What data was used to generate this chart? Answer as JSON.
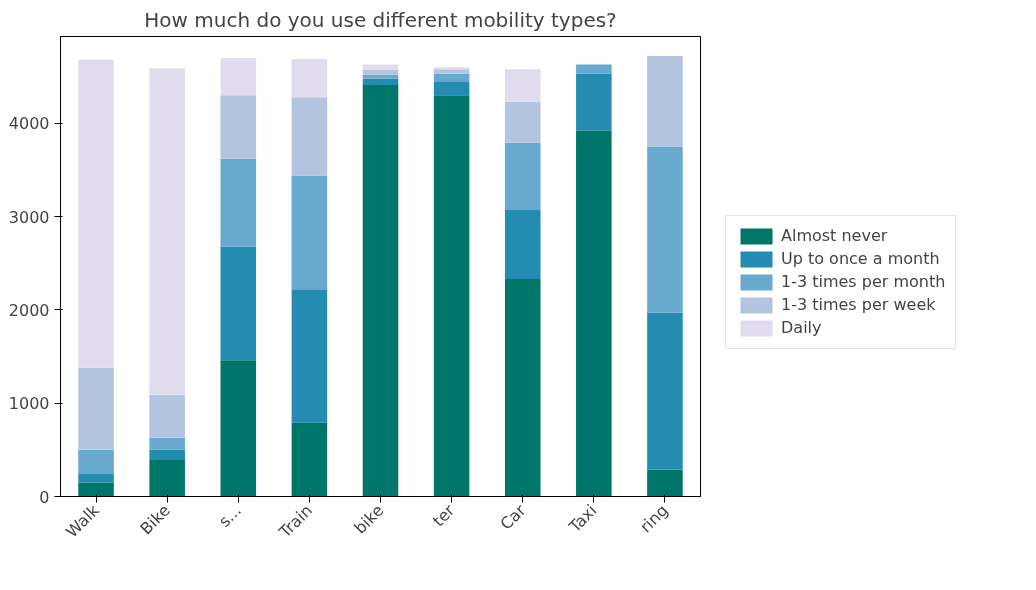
{
  "chart_data": {
    "type": "bar",
    "title": "How much do you use different mobility types?",
    "stacked": true,
    "categories": [
      "Walk",
      "Bike",
      "s...",
      "Train",
      "bike",
      "ter",
      "Car",
      "Taxi",
      "ring"
    ],
    "series": [
      {
        "name": "Almost never",
        "color": "#00756a",
        "values": [
          150,
          390,
          1460,
          790,
          4410,
          4300,
          2330,
          3920,
          290
        ]
      },
      {
        "name": "Up to once a month",
        "color": "#238cb0",
        "values": [
          90,
          110,
          1220,
          1430,
          70,
          150,
          740,
          610,
          1680
        ]
      },
      {
        "name": "1-3 times per month",
        "color": "#67a9cf",
        "values": [
          260,
          130,
          940,
          1220,
          40,
          80,
          720,
          100,
          1780
        ]
      },
      {
        "name": "1-3 times per week",
        "color": "#b3c4e0",
        "values": [
          880,
          460,
          680,
          840,
          50,
          50,
          440,
          0,
          970
        ]
      },
      {
        "name": "Daily",
        "color": "#e1dced",
        "values": [
          3300,
          3500,
          400,
          410,
          60,
          20,
          350,
          0,
          0
        ]
      }
    ],
    "ylim": [
      0,
      4930
    ],
    "yticks": [
      0,
      1000,
      2000,
      3000,
      4000
    ],
    "grid": false,
    "legend": "right"
  }
}
